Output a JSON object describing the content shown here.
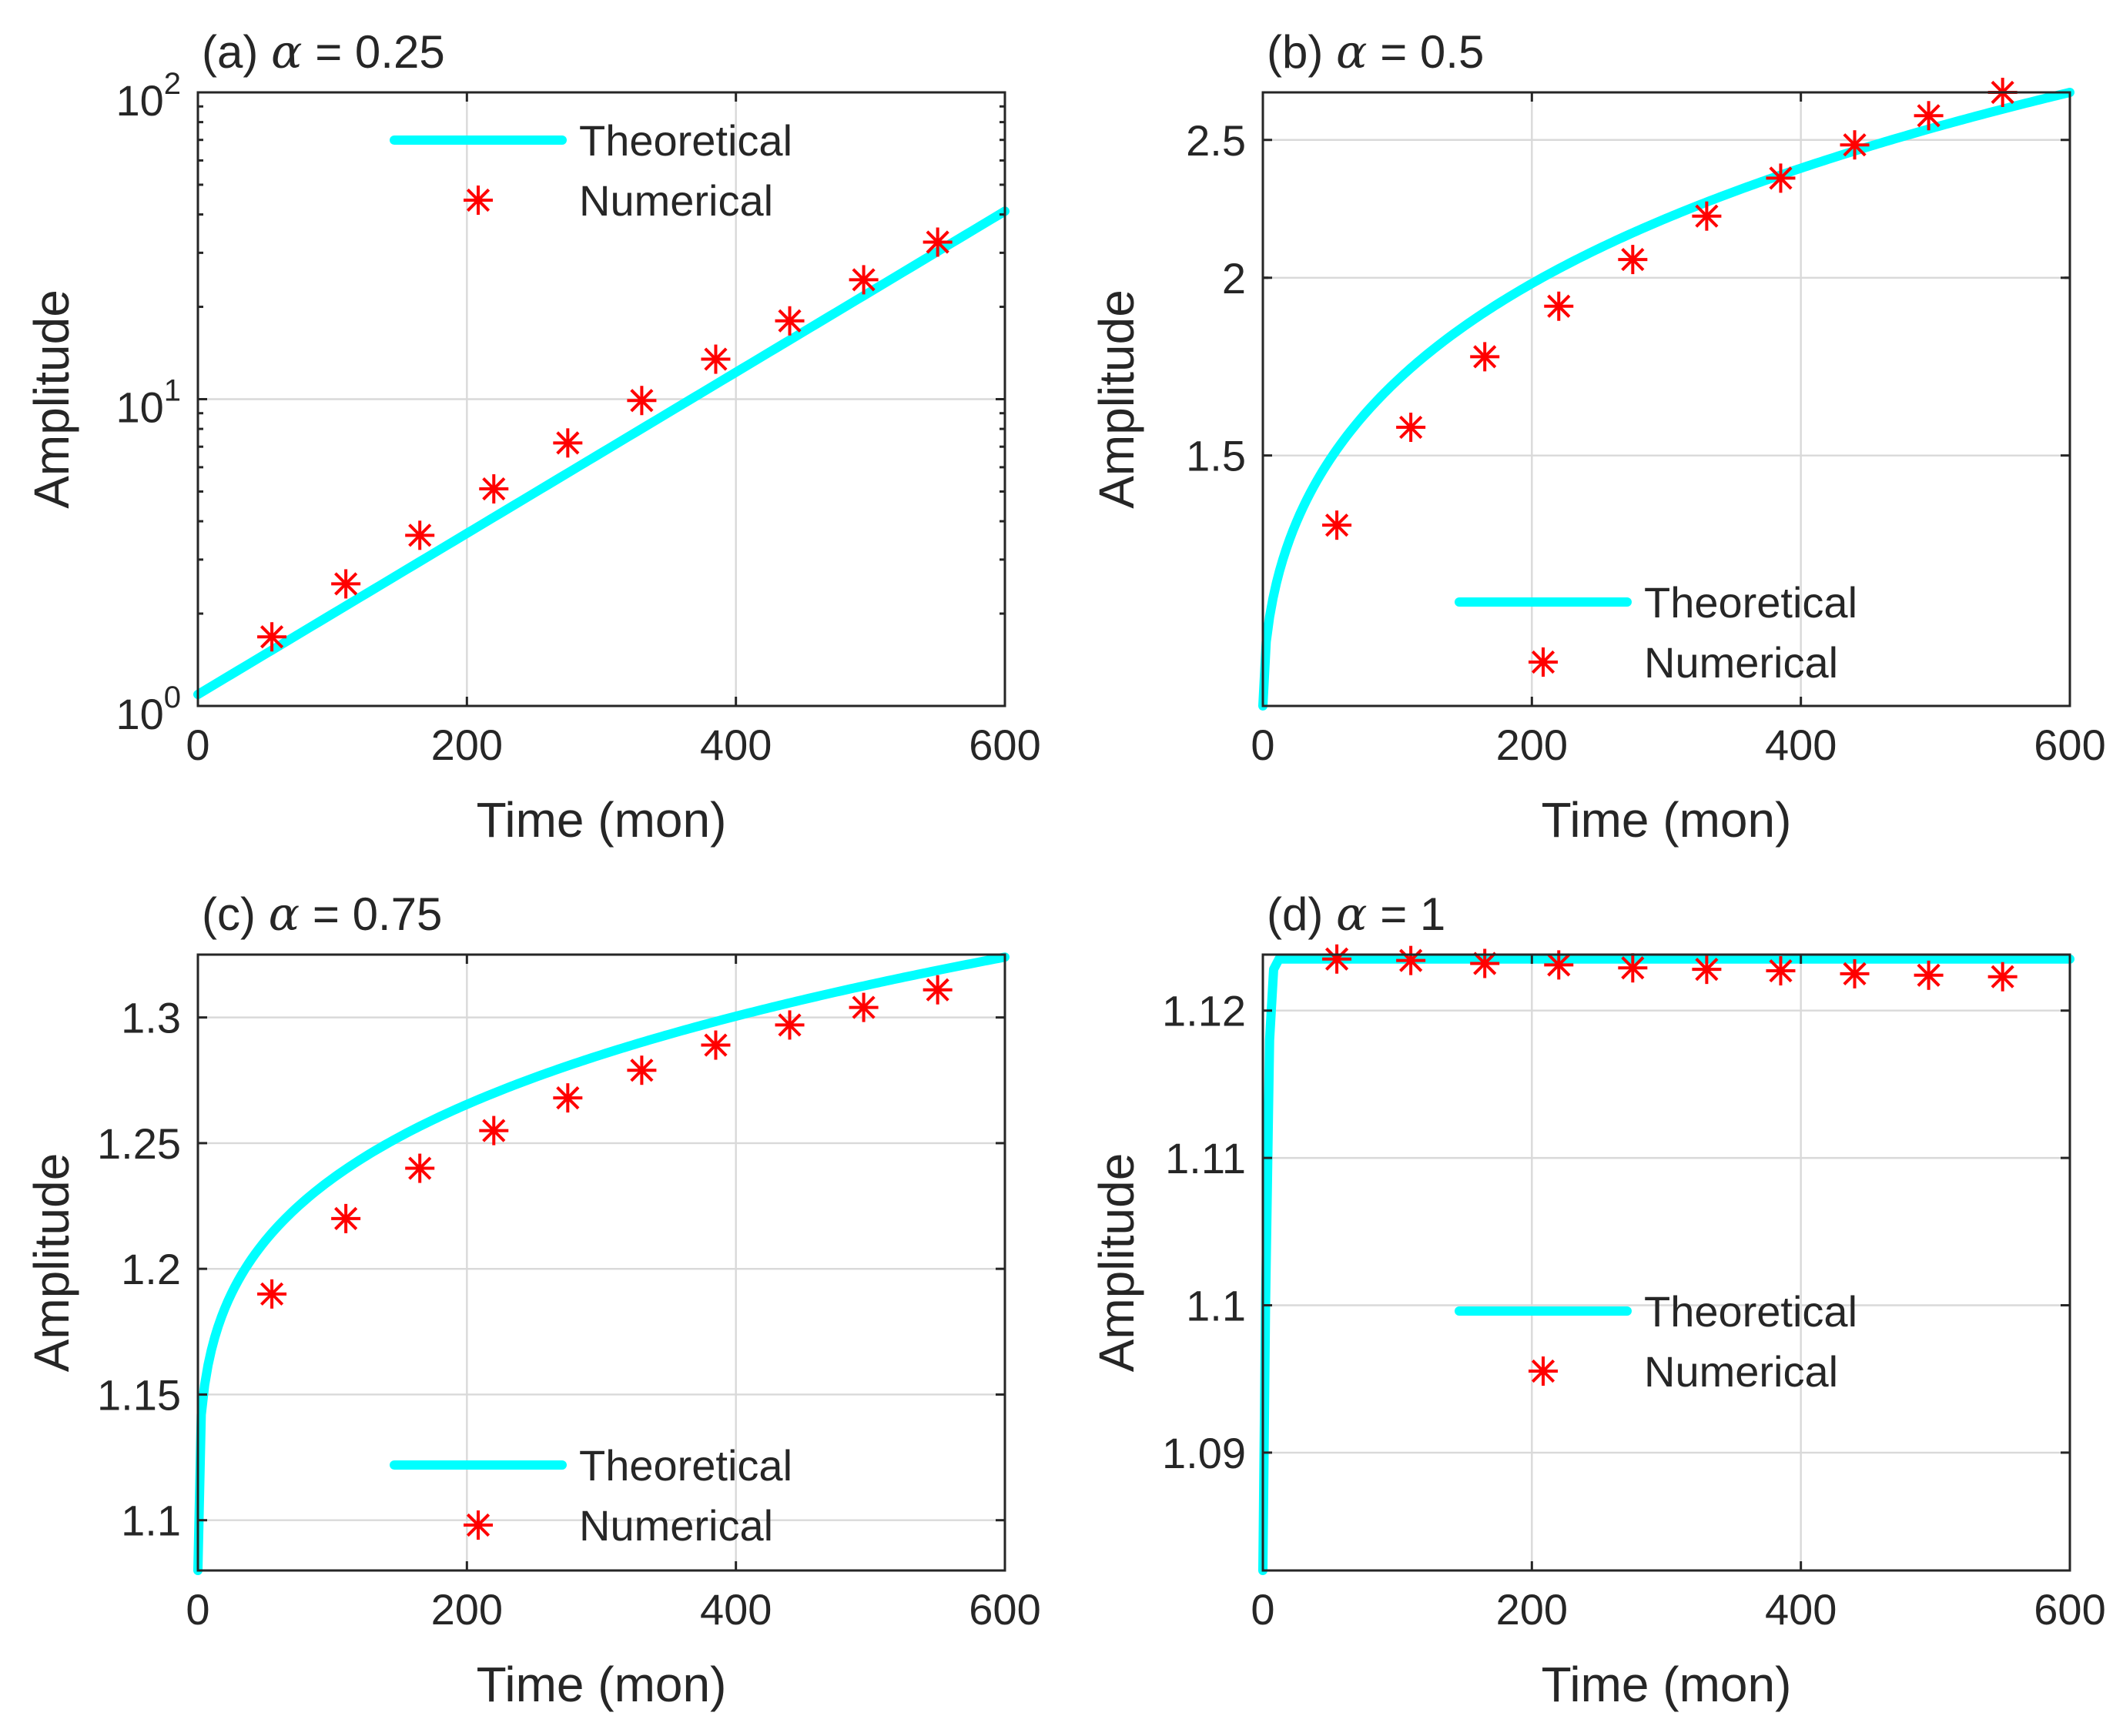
{
  "colors": {
    "theoretical": "#00ffff",
    "numerical": "#ff0000",
    "axes": "#262626",
    "grid": "#d9d9d9"
  },
  "chart_data": [
    {
      "id": "a",
      "type": "line",
      "title": {
        "prefix": "(a)",
        "symbol": "α",
        "eq": "=",
        "value": "0.25"
      },
      "xlabel": "Time (mon)",
      "ylabel": "Amplitude",
      "xlim": [
        0,
        600
      ],
      "ylim": [
        1,
        100
      ],
      "yscale": "log",
      "xticks": [
        0,
        200,
        400,
        600
      ],
      "xtick_labels": [
        "0",
        "200",
        "400",
        "600"
      ],
      "yticks": [
        1,
        10,
        100
      ],
      "ytick_labels": [
        {
          "base": "10",
          "exp": "0"
        },
        {
          "base": "10",
          "exp": "1"
        },
        {
          "base": "10",
          "exp": "2"
        }
      ],
      "grid": true,
      "legend_loc": "top-center",
      "legend": [
        "Theoretical",
        "Numerical"
      ],
      "series": [
        {
          "name": "Theoretical",
          "style": "line",
          "model": "log-linear",
          "x": [
            0,
            600
          ],
          "y": [
            1.09,
            41
          ]
        },
        {
          "name": "Numerical",
          "style": "markers",
          "marker": "asterisk",
          "x": [
            55,
            110,
            165,
            220,
            275,
            330,
            385,
            440,
            495,
            550
          ],
          "y": [
            1.68,
            2.5,
            3.6,
            5.1,
            7.2,
            9.9,
            13.5,
            18.0,
            24.5,
            32.5
          ]
        }
      ]
    },
    {
      "id": "b",
      "type": "line",
      "title": {
        "prefix": "(b)",
        "symbol": "α",
        "eq": "=",
        "value": "0.5"
      },
      "xlabel": "Time (mon)",
      "ylabel": "Amplitude",
      "xlim": [
        0,
        600
      ],
      "ylim": [
        1.0,
        2.7
      ],
      "yscale": "log",
      "xticks": [
        0,
        200,
        400,
        600
      ],
      "xtick_labels": [
        "0",
        "200",
        "400",
        "600"
      ],
      "yticks": [
        1.5,
        2,
        2.5
      ],
      "ytick_labels": [
        "1.5",
        "2",
        "2.5"
      ],
      "grid": true,
      "legend_loc": "bottom-right",
      "legend": [
        "Theoretical",
        "Numerical"
      ],
      "series": [
        {
          "name": "Theoretical",
          "style": "line",
          "model": "power",
          "exponent": 0.5,
          "x": [
            0,
            600
          ],
          "y": [
            1.0,
            2.7
          ]
        },
        {
          "name": "Numerical",
          "style": "markers",
          "marker": "asterisk",
          "x": [
            55,
            110,
            165,
            220,
            275,
            330,
            385,
            440,
            495,
            550
          ],
          "y": [
            1.34,
            1.57,
            1.76,
            1.91,
            2.06,
            2.21,
            2.35,
            2.48,
            2.6,
            2.7
          ]
        }
      ]
    },
    {
      "id": "c",
      "type": "line",
      "title": {
        "prefix": "(c)",
        "symbol": "α",
        "eq": "=",
        "value": "0.75"
      },
      "xlabel": "Time (mon)",
      "ylabel": "Amplitude",
      "xlim": [
        0,
        600
      ],
      "ylim": [
        1.08,
        1.325
      ],
      "yscale": "linear",
      "xticks": [
        0,
        200,
        400,
        600
      ],
      "xtick_labels": [
        "0",
        "200",
        "400",
        "600"
      ],
      "yticks": [
        1.1,
        1.15,
        1.2,
        1.25,
        1.3
      ],
      "ytick_labels": [
        "1.1",
        "1.15",
        "1.2",
        "1.25",
        "1.3"
      ],
      "grid": true,
      "legend_loc": "bottom-right",
      "legend": [
        "Theoretical",
        "Numerical"
      ],
      "series": [
        {
          "name": "Theoretical",
          "style": "line",
          "model": "power",
          "exponent": 0.25,
          "x": [
            0,
            600
          ],
          "y": [
            1.08,
            1.324
          ]
        },
        {
          "name": "Numerical",
          "style": "markers",
          "marker": "asterisk",
          "x": [
            55,
            110,
            165,
            220,
            275,
            330,
            385,
            440,
            495,
            550
          ],
          "y": [
            1.19,
            1.22,
            1.24,
            1.255,
            1.268,
            1.279,
            1.289,
            1.297,
            1.304,
            1.311
          ]
        }
      ]
    },
    {
      "id": "d",
      "type": "line",
      "title": {
        "prefix": "(d)",
        "symbol": "α",
        "eq": "=",
        "value": "1"
      },
      "xlabel": "Time (mon)",
      "ylabel": "Amplitude",
      "xlim": [
        0,
        600
      ],
      "ylim": [
        1.082,
        1.1238
      ],
      "yscale": "linear",
      "xticks": [
        0,
        200,
        400,
        600
      ],
      "xtick_labels": [
        "0",
        "200",
        "400",
        "600"
      ],
      "yticks": [
        1.09,
        1.1,
        1.11,
        1.12
      ],
      "ytick_labels": [
        "1.09",
        "1.1",
        "1.11",
        "1.12"
      ],
      "grid": true,
      "legend_loc": "center-right",
      "legend": [
        "Theoretical",
        "Numerical"
      ],
      "series": [
        {
          "name": "Theoretical",
          "style": "line",
          "model": "polyline",
          "x": [
            0,
            2,
            5,
            8,
            12,
            600
          ],
          "y": [
            1.082,
            1.1,
            1.118,
            1.1228,
            1.1235,
            1.1235
          ]
        },
        {
          "name": "Numerical",
          "style": "markers",
          "marker": "asterisk",
          "x": [
            55,
            110,
            165,
            220,
            275,
            330,
            385,
            440,
            495,
            550
          ],
          "y": [
            1.1235,
            1.1234,
            1.1232,
            1.1231,
            1.1229,
            1.1228,
            1.1227,
            1.1225,
            1.1224,
            1.1223
          ]
        }
      ]
    }
  ]
}
